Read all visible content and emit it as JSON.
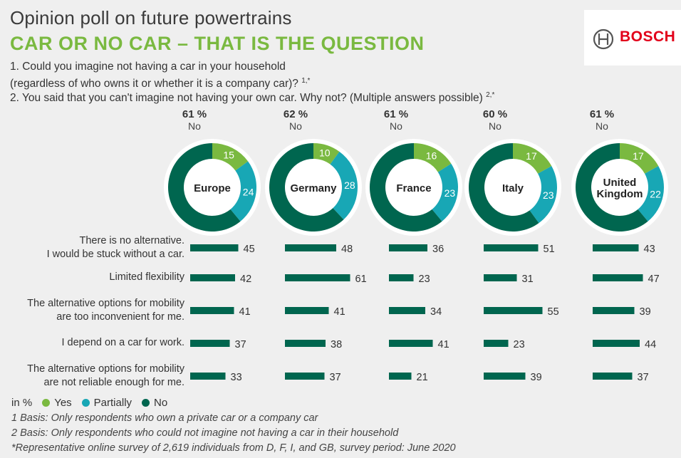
{
  "header": {
    "title": "Opinion poll on future powertrains",
    "subtitle": "CAR OR NO CAR – THAT IS THE QUESTION",
    "q1_line1": "1. Could you imagine not having a car in your household",
    "q1_line2": "(regardless of who owns it or whether it is a company car)?",
    "q1_sup": "1,*",
    "q2_line": "2. You said that you can't imagine not having your own car. Why not? (Multiple answers possible)",
    "q2_sup": "2,*"
  },
  "logo": {
    "text": "BOSCH",
    "icon": "bosch-armature-icon"
  },
  "colors": {
    "yes": "#7ab940",
    "partially": "#18a7b5",
    "no": "#00664f",
    "bar": "#00664f"
  },
  "chart_data": {
    "type": "donut+bar",
    "donuts": [
      {
        "region": "Europe",
        "no_label": "61 %",
        "no_sub": "No",
        "yes": 15,
        "partially": 24,
        "no": 61
      },
      {
        "region": "Germany",
        "no_label": "62 %",
        "no_sub": "No",
        "yes": 10,
        "partially": 28,
        "no": 62
      },
      {
        "region": "France",
        "no_label": "61 %",
        "no_sub": "No",
        "yes": 16,
        "partially": 23,
        "no": 61
      },
      {
        "region": "Italy",
        "no_label": "60 %",
        "no_sub": "No",
        "yes": 17,
        "partially": 23,
        "no": 60
      },
      {
        "region": "United Kingdom",
        "no_label": "61 %",
        "no_sub": "No",
        "yes": 17,
        "partially": 22,
        "no": 61
      }
    ],
    "reasons": [
      {
        "line1": "There is no alternative.",
        "line2": "I would be stuck without a car.",
        "values": [
          45,
          48,
          36,
          51,
          43
        ]
      },
      {
        "line1": "Limited flexibility",
        "line2": "",
        "values": [
          42,
          61,
          23,
          31,
          47
        ]
      },
      {
        "line1": "The alternative options for mobility",
        "line2": "are too inconvenient for me.",
        "values": [
          41,
          41,
          34,
          55,
          39
        ]
      },
      {
        "line1": "I depend on a car for work.",
        "line2": "",
        "values": [
          37,
          38,
          41,
          23,
          44
        ]
      },
      {
        "line1": "The alternative options for mobility",
        "line2": "are not reliable  enough for me.",
        "values": [
          33,
          37,
          21,
          39,
          37
        ]
      }
    ]
  },
  "legend": {
    "unit": "in %",
    "yes": "Yes",
    "partially": "Partially",
    "no": "No"
  },
  "notes": {
    "n1": "1 Basis: Only respondents who own a private car or a company car",
    "n2": "2 Basis: Only respondents who could not imagine not having a car in their household",
    "n3": "*Representative online survey of 2,619 individuals from D, F, I, and GB, survey period: June 2020"
  }
}
